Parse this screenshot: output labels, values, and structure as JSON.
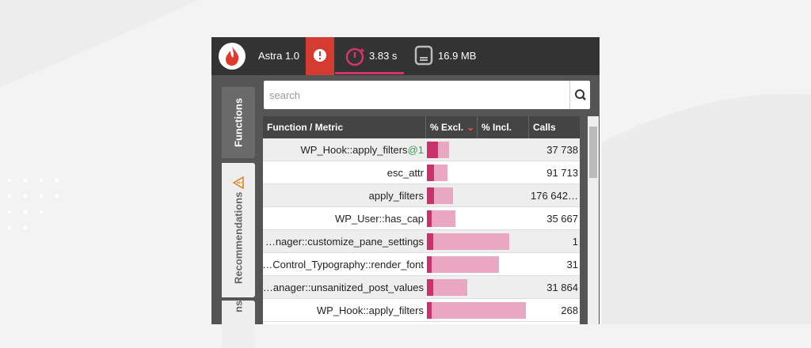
{
  "header": {
    "app_name": "Astra 1.0",
    "time": "3.83 s",
    "memory": "16.9 MB"
  },
  "tabs": [
    "Functions",
    "Recommendations",
    "ns"
  ],
  "search_placeholder": "search",
  "table": {
    "columns": [
      "Function / Metric",
      "% Excl.",
      "% Incl.",
      "Calls"
    ],
    "rows": [
      {
        "function": "WP_Hook::apply_filters",
        "suffix": "@1",
        "excl": 11,
        "incl": 22,
        "calls": "37 738"
      },
      {
        "function": "esc_attr",
        "excl": 7,
        "incl": 20,
        "calls": "91 713"
      },
      {
        "function": "apply_filters",
        "excl": 7,
        "incl": 26,
        "calls": "176 642…"
      },
      {
        "function": "WP_User::has_cap",
        "excl": 5,
        "incl": 28,
        "calls": "35 667"
      },
      {
        "function": "…nager::customize_pane_settings",
        "excl": 6,
        "incl": 81,
        "calls": "1"
      },
      {
        "function": "…Control_Typography::render_font",
        "excl": 5,
        "incl": 71,
        "calls": "31"
      },
      {
        "function": "…anager::unsanitized_post_values",
        "excl": 6,
        "incl": 40,
        "calls": "31 864"
      },
      {
        "function": "WP_Hook::apply_filters",
        "excl": 5,
        "incl": 98,
        "calls": "268"
      }
    ]
  }
}
